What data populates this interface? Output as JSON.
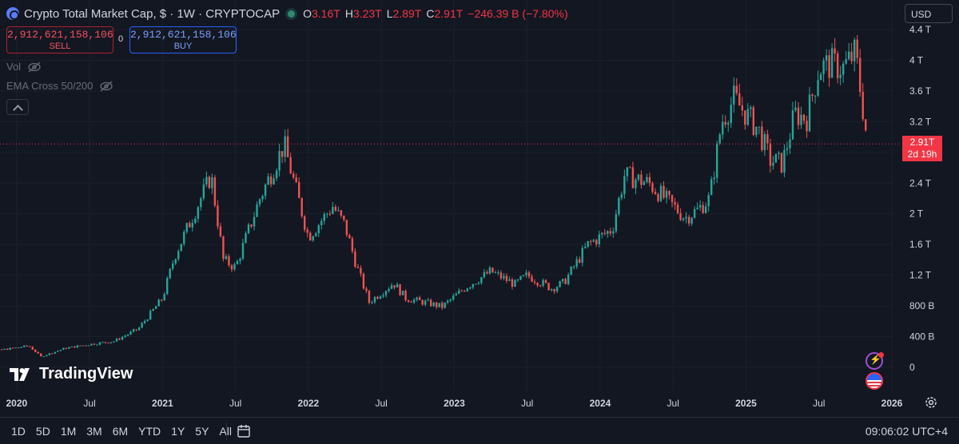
{
  "header": {
    "title": "Crypto Total Market Cap, $ · 1W · CRYPTOCAP",
    "ohlc": [
      {
        "key": "O",
        "value": "3.16T"
      },
      {
        "key": "H",
        "value": "3.23T"
      },
      {
        "key": "L",
        "value": "2.89T"
      },
      {
        "key": "C",
        "value": "2.91T"
      }
    ],
    "change": "−246.39 B (−7.80%)"
  },
  "trade": {
    "sell_price": "2,912,621,158,106",
    "sell_label": "SELL",
    "spread": "0",
    "buy_price": "2,912,621,158,106",
    "buy_label": "BUY"
  },
  "indicators": {
    "vol_label": "Vol",
    "ema_label": "EMA Cross 50/200"
  },
  "currency": "USD",
  "price_tag": {
    "price": "2.91T",
    "countdown": "2d 19h"
  },
  "brand": "TradingView",
  "bottom_bar": {
    "periods": [
      "1D",
      "5D",
      "1M",
      "3M",
      "6M",
      "YTD",
      "1Y",
      "5Y",
      "All"
    ],
    "clock": "09:06:02 UTC+4"
  },
  "colors": {
    "background": "#131722",
    "up": "#26a69a",
    "down": "#ef5350",
    "accent": "#2962ff"
  },
  "chart_data": {
    "type": "candlestick",
    "title": "Crypto Total Market Cap, $ · 1W · CRYPTOCAP",
    "y_unit": "USD (billions)",
    "ylim": [
      0,
      4400
    ],
    "y_ticks": [
      {
        "value": 0,
        "label": "0"
      },
      {
        "value": 400,
        "label": "400 B"
      },
      {
        "value": 800,
        "label": "800 B"
      },
      {
        "value": 1200,
        "label": "1.2 T"
      },
      {
        "value": 1600,
        "label": "1.6 T"
      },
      {
        "value": 2000,
        "label": "2 T"
      },
      {
        "value": 2400,
        "label": "2.4 T"
      },
      {
        "value": 2800,
        "label": "2.8 T"
      },
      {
        "value": 3200,
        "label": "3.2 T"
      },
      {
        "value": 3600,
        "label": "3.6 T"
      },
      {
        "value": 4000,
        "label": "4 T"
      },
      {
        "value": 4400,
        "label": "4.4 T"
      }
    ],
    "x_ticks": [
      {
        "label": "2020",
        "date": "2020-01"
      },
      {
        "label": "Jul",
        "date": "2020-07"
      },
      {
        "label": "2021",
        "date": "2021-01"
      },
      {
        "label": "Jul",
        "date": "2021-07"
      },
      {
        "label": "2022",
        "date": "2022-01"
      },
      {
        "label": "Jul",
        "date": "2022-07"
      },
      {
        "label": "2023",
        "date": "2023-01"
      },
      {
        "label": "Jul",
        "date": "2023-07"
      },
      {
        "label": "2024",
        "date": "2024-01"
      },
      {
        "label": "Jul",
        "date": "2024-07"
      },
      {
        "label": "2025",
        "date": "2025-01"
      },
      {
        "label": "Jul",
        "date": "2025-07"
      },
      {
        "label": "2026",
        "date": "2026-01"
      }
    ],
    "x_range": [
      "2019-09",
      "2026-01"
    ],
    "last_price": 2910,
    "close_path": [
      {
        "date": "2019-09",
        "value": 230
      },
      {
        "date": "2019-11",
        "value": 210
      },
      {
        "date": "2020-02",
        "value": 280
      },
      {
        "date": "2020-03",
        "value": 140
      },
      {
        "date": "2020-05",
        "value": 250
      },
      {
        "date": "2020-07",
        "value": 300
      },
      {
        "date": "2020-09",
        "value": 340
      },
      {
        "date": "2020-11",
        "value": 500
      },
      {
        "date": "2021-01",
        "value": 900
      },
      {
        "date": "2021-02",
        "value": 1450
      },
      {
        "date": "2021-04",
        "value": 2150
      },
      {
        "date": "2021-05",
        "value": 2500
      },
      {
        "date": "2021-06",
        "value": 1400
      },
      {
        "date": "2021-07",
        "value": 1300
      },
      {
        "date": "2021-09",
        "value": 2200
      },
      {
        "date": "2021-11",
        "value": 2900
      },
      {
        "date": "2021-12",
        "value": 2300
      },
      {
        "date": "2022-01",
        "value": 1700
      },
      {
        "date": "2022-03",
        "value": 2100
      },
      {
        "date": "2022-04",
        "value": 1850
      },
      {
        "date": "2022-05",
        "value": 1300
      },
      {
        "date": "2022-06",
        "value": 850
      },
      {
        "date": "2022-08",
        "value": 1100
      },
      {
        "date": "2022-09",
        "value": 900
      },
      {
        "date": "2022-11",
        "value": 830
      },
      {
        "date": "2022-12",
        "value": 790
      },
      {
        "date": "2023-02",
        "value": 1050
      },
      {
        "date": "2023-04",
        "value": 1250
      },
      {
        "date": "2023-06",
        "value": 1080
      },
      {
        "date": "2023-07",
        "value": 1200
      },
      {
        "date": "2023-09",
        "value": 1030
      },
      {
        "date": "2023-10",
        "value": 1100
      },
      {
        "date": "2023-12",
        "value": 1600
      },
      {
        "date": "2024-02",
        "value": 1800
      },
      {
        "date": "2024-03",
        "value": 2500
      },
      {
        "date": "2024-05",
        "value": 2400
      },
      {
        "date": "2024-06",
        "value": 2250
      },
      {
        "date": "2024-08",
        "value": 1950
      },
      {
        "date": "2024-09",
        "value": 2050
      },
      {
        "date": "2024-10",
        "value": 2200
      },
      {
        "date": "2024-11",
        "value": 3200
      },
      {
        "date": "2024-12",
        "value": 3500
      },
      {
        "date": "2025-01",
        "value": 3300
      },
      {
        "date": "2025-02",
        "value": 3100
      },
      {
        "date": "2025-03",
        "value": 2700
      },
      {
        "date": "2025-04",
        "value": 2650
      },
      {
        "date": "2025-05",
        "value": 3300
      },
      {
        "date": "2025-06",
        "value": 3250
      },
      {
        "date": "2025-07",
        "value": 3900
      },
      {
        "date": "2025-08",
        "value": 3950
      },
      {
        "date": "2025-09",
        "value": 3900
      },
      {
        "date": "2025-10",
        "value": 4100
      },
      {
        "date": "2025-11",
        "value": 2910
      }
    ]
  }
}
